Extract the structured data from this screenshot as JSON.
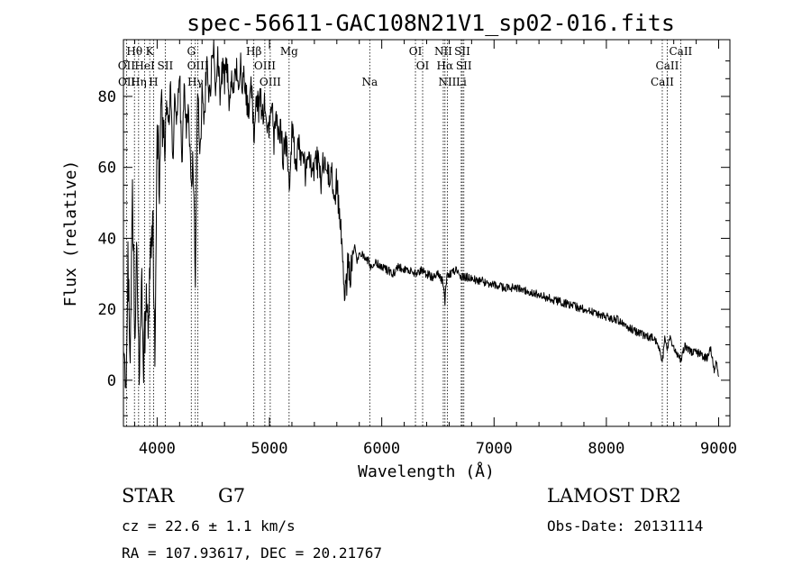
{
  "chart_data": {
    "type": "line",
    "title": "spec-56611-GAC108N21V1_sp02-016.fits",
    "xlabel": "Wavelength (Å)",
    "ylabel": "Flux (relative)",
    "xlim": [
      3700,
      9100
    ],
    "ylim": [
      -13,
      96
    ],
    "xticks": [
      4000,
      5000,
      6000,
      7000,
      8000,
      9000
    ],
    "yticks": [
      0,
      20,
      40,
      60,
      80
    ],
    "grid": false,
    "series": [
      {
        "x": [
          3700,
          3720,
          3740,
          3760,
          3780,
          3800,
          3820,
          3840,
          3860,
          3880,
          3900,
          3920,
          3940,
          3960,
          3980,
          4000,
          4020,
          4040,
          4060,
          4080,
          4100,
          4120,
          4140,
          4160,
          4180,
          4200,
          4220,
          4240,
          4260,
          4280,
          4300,
          4320,
          4340,
          4360,
          4380,
          4400,
          4420,
          4440,
          4460,
          4480,
          4500,
          4520,
          4540,
          4560,
          4580,
          4600,
          4620,
          4640,
          4660,
          4680,
          4700,
          4720,
          4740,
          4760,
          4780,
          4800,
          4820,
          4840,
          4860,
          4880,
          4900,
          4920,
          4940,
          4960,
          4980,
          5000,
          5020,
          5040,
          5060,
          5080,
          5100,
          5120,
          5140,
          5160,
          5180,
          5200,
          5220,
          5240,
          5260,
          5280,
          5300,
          5320,
          5340,
          5360,
          5380,
          5400,
          5420,
          5440,
          5460,
          5480,
          5500,
          5520,
          5540,
          5560,
          5580,
          5600,
          5620,
          5640,
          5660,
          5680,
          5700,
          5720,
          5740,
          5760,
          5780,
          5800,
          5850,
          5890,
          5900,
          5950,
          6000,
          6050,
          6100,
          6150,
          6200,
          6250,
          6300,
          6350,
          6400,
          6450,
          6500,
          6540,
          6563,
          6580,
          6620,
          6660,
          6700,
          6750,
          6800,
          6850,
          6900,
          6950,
          7000,
          7100,
          7200,
          7300,
          7400,
          7500,
          7600,
          7700,
          7800,
          7900,
          8000,
          8100,
          8200,
          8300,
          8400,
          8450,
          8498,
          8520,
          8542,
          8560,
          8600,
          8662,
          8700,
          8750,
          8800,
          8850,
          8900,
          8930,
          8960,
          8980,
          9000
        ],
        "y": [
          10,
          -3,
          35,
          8,
          52,
          15,
          40,
          -2,
          30,
          5,
          22,
          10,
          35,
          48,
          6,
          72,
          58,
          80,
          65,
          77,
          70,
          85,
          62,
          80,
          74,
          88,
          60,
          82,
          70,
          78,
          55,
          62,
          30,
          85,
          60,
          80,
          72,
          90,
          78,
          86,
          95,
          82,
          92,
          80,
          88,
          84,
          90,
          78,
          86,
          80,
          88,
          84,
          90,
          82,
          86,
          78,
          74,
          84,
          68,
          82,
          76,
          80,
          74,
          78,
          70,
          72,
          78,
          68,
          75,
          70,
          72,
          62,
          68,
          65,
          55,
          70,
          66,
          62,
          68,
          64,
          66,
          58,
          64,
          60,
          62,
          58,
          62,
          60,
          55,
          62,
          58,
          60,
          55,
          58,
          52,
          56,
          48,
          40,
          28,
          24,
          34,
          30,
          36,
          38,
          34,
          36,
          35,
          33,
          32,
          33,
          32,
          31,
          30,
          32,
          31,
          31,
          30,
          31,
          30,
          29,
          30,
          28,
          22,
          30,
          30,
          31,
          29,
          29,
          29,
          28,
          28,
          27,
          27,
          26,
          26,
          25,
          24,
          23,
          22,
          21,
          20,
          19,
          18,
          17,
          15,
          13,
          12,
          11,
          5,
          12,
          8,
          12,
          9,
          6,
          10,
          8,
          8,
          7,
          6,
          9,
          3,
          6,
          1
        ]
      }
    ],
    "line_labels": [
      {
        "text": "Hθ",
        "x": 3798,
        "row": 1
      },
      {
        "text": "K",
        "x": 3934,
        "row": 1
      },
      {
        "text": "G",
        "x": 4304,
        "row": 1
      },
      {
        "text": "Hβ",
        "x": 4861,
        "row": 1
      },
      {
        "text": "Mg",
        "x": 5175,
        "row": 1
      },
      {
        "text": "OI",
        "x": 6300,
        "row": 1
      },
      {
        "text": "NII",
        "x": 6548,
        "row": 1
      },
      {
        "text": "SII",
        "x": 6717,
        "row": 1
      },
      {
        "text": "CaII",
        "x": 8662,
        "row": 1
      },
      {
        "text": "OII",
        "x": 3727,
        "row": 2
      },
      {
        "text": "HeI",
        "x": 3889,
        "row": 2
      },
      {
        "text": "SII",
        "x": 4072,
        "row": 2
      },
      {
        "text": "OIII",
        "x": 4363,
        "row": 2
      },
      {
        "text": "OIII",
        "x": 4959,
        "row": 2
      },
      {
        "text": "OI",
        "x": 6364,
        "row": 2
      },
      {
        "text": "Hα",
        "x": 6563,
        "row": 2
      },
      {
        "text": "SII",
        "x": 6731,
        "row": 2
      },
      {
        "text": "CaII",
        "x": 8542,
        "row": 2
      },
      {
        "text": "OII",
        "x": 3729,
        "row": 3
      },
      {
        "text": "Hη",
        "x": 3835,
        "row": 3
      },
      {
        "text": "H",
        "x": 3968,
        "row": 3
      },
      {
        "text": "Hγ",
        "x": 4340,
        "row": 3
      },
      {
        "text": "OIII",
        "x": 5007,
        "row": 3
      },
      {
        "text": "Na",
        "x": 5893,
        "row": 3
      },
      {
        "text": "NII",
        "x": 6584,
        "row": 3
      },
      {
        "text": "Li",
        "x": 6708,
        "row": 3
      },
      {
        "text": "CaII",
        "x": 8498,
        "row": 3
      }
    ],
    "line_markers": [
      3727,
      3798,
      3835,
      3889,
      3934,
      3968,
      4072,
      4304,
      4340,
      4363,
      4861,
      4959,
      5007,
      5175,
      5893,
      6300,
      6364,
      6548,
      6563,
      6584,
      6708,
      6717,
      6731,
      8498,
      8542,
      8662
    ]
  },
  "info": {
    "object_class": "STAR",
    "subclass": "G7",
    "survey": "LAMOST DR2",
    "cz": "cz = 22.6 ± 1.1 km/s",
    "obs_date": "Obs-Date: 20131114",
    "coords": "RA = 107.93617, DEC =  20.21767"
  }
}
